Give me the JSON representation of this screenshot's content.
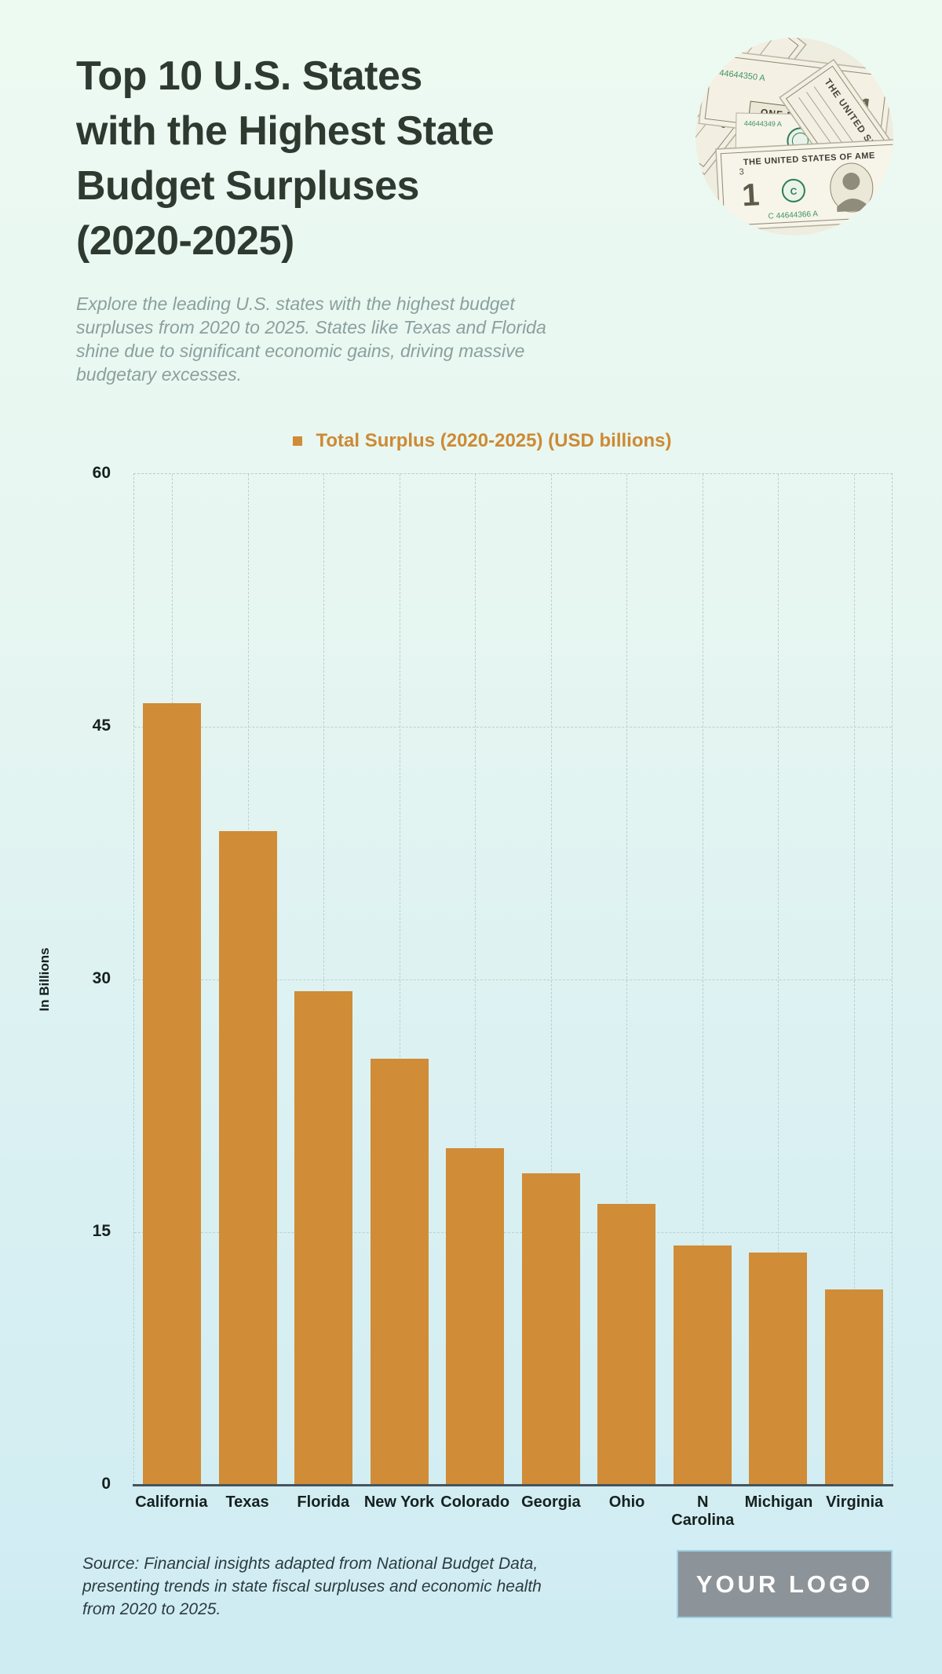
{
  "header": {
    "title_lines": [
      "Top 10 U.S. States",
      "with the Highest State",
      "Budget Surpluses",
      "(2020-2025)"
    ],
    "subtitle": "Explore the leading U.S. states with the highest budget surpluses from 2020 to 2025. States like Texas and Florida shine due to significant economic gains, driving massive budgetary excesses.",
    "money_image": {
      "bill_title": "THE UNITED STATES OF AME",
      "banner": "ONE DOLLAR",
      "serial": "C 44644366 A",
      "serial2": "44644350 A",
      "denomination": "1"
    }
  },
  "chart": {
    "legend_label": "Total Surplus (2020-2025) (USD billions)"
  },
  "chart_data": {
    "type": "bar",
    "title": "Total Surplus (2020-2025) (USD billions)",
    "categories": [
      "California",
      "Texas",
      "Florida",
      "New York",
      "Colorado",
      "Georgia",
      "Ohio",
      "N Carolina",
      "Michigan",
      "Virginia"
    ],
    "values": [
      46.4,
      38.8,
      29.3,
      25.3,
      20,
      18.5,
      16.7,
      14.2,
      13.8,
      11.6
    ],
    "xlabel": "",
    "ylabel": "In Billions",
    "ylim": [
      0,
      60
    ],
    "yticks": [
      0,
      15,
      30,
      45,
      60
    ],
    "grid": "dashed-horizontal-and-vertical",
    "legend_position": "top-center",
    "bar_color": "#d08c36"
  },
  "footer": {
    "source_note": "Source: Financial insights adapted from National Budget Data, presenting trends in state fiscal surpluses and economic health from 2020 to 2025.",
    "logo_text": "YOUR LOGO"
  },
  "colors": {
    "accent_orange": "#d08c36",
    "background_top": "#edfaf2",
    "background_bottom": "#cfecf3",
    "title_text": "#2e3a30",
    "tick_text": "#16211f",
    "muted_text": "#8ba09e",
    "source_text": "#2c3b40",
    "axis_line": "#46535e",
    "grid_line": "#bdd0ce",
    "logo_box_bg": "#8d9499",
    "logo_box_border": "#9fd0e4"
  }
}
